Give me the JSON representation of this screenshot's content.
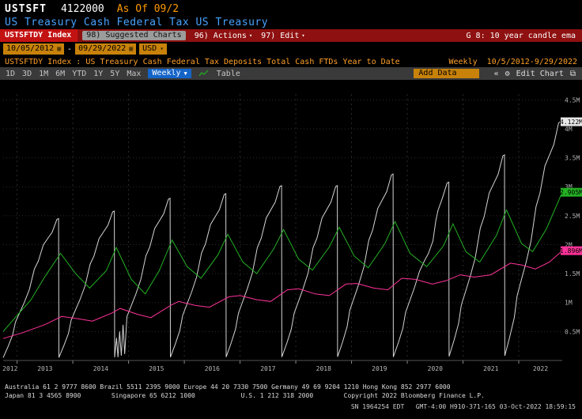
{
  "header": {
    "ticker": "USTSFT",
    "price": "4122000",
    "asof": "As Of 09/2",
    "description": "US Treasury Cash Federal Tax  US Treasury"
  },
  "panel": {
    "security": "USTSFTDY Index",
    "suggested": "98) Suggested Charts",
    "actions": "96) Actions",
    "edit": "97) Edit",
    "title": "G 8: 10 year candle ema"
  },
  "range": {
    "start": "10/05/2012",
    "dash": "-",
    "end": "09/29/2022",
    "currency": "USD"
  },
  "titlebar": {
    "text": "USTSFTDY Index : US Treasury Cash Federal Tax Deposits Total Cash FTDs Year to Date",
    "period": "Weekly",
    "range": "10/5/2012-9/29/2022"
  },
  "toolbar": {
    "periods": [
      "1D",
      "3D",
      "1M",
      "6M",
      "YTD",
      "1Y",
      "5Y",
      "Max"
    ],
    "frequency": "Weekly",
    "table": "Table",
    "add_data": "Add Data",
    "edit_chart": "Edit Chart"
  },
  "icons": {
    "chevron": "▾",
    "chevron_solid": "▼",
    "calendar": "▦",
    "collapse": "«",
    "gear": "⚙",
    "snapshot": "⧉"
  },
  "chart_data": {
    "type": "line",
    "title": "USTSFTDY Index : US Treasury Cash Federal Tax Deposits Total Cash FTDs Year to Date",
    "frequency": "Weekly",
    "xlim": [
      2012.75,
      2022.78
    ],
    "ylim": [
      0,
      4.6
    ],
    "grid": true,
    "legend_position": "none",
    "x_years": [
      2012,
      2013,
      2014,
      2015,
      2016,
      2017,
      2018,
      2019,
      2020,
      2021,
      2022
    ],
    "year_gridlines": [
      2013,
      2014,
      2015,
      2016,
      2017,
      2018,
      2019,
      2020,
      2021,
      2022
    ],
    "yticks": [
      {
        "value": 0.5,
        "label": "0.5M"
      },
      {
        "value": 1,
        "label": "1M"
      },
      {
        "value": 1.5,
        "label": "1.5M"
      },
      {
        "value": 2,
        "label": "2M"
      },
      {
        "value": 2.5,
        "label": "2.5M"
      },
      {
        "value": 3,
        "label": "3M"
      },
      {
        "value": 3.5,
        "label": "3.5M"
      },
      {
        "value": 4,
        "label": "4M"
      },
      {
        "value": 4.5,
        "label": "4.5M"
      }
    ],
    "main_series": {
      "name": "Total Cash FTDs fiscal year to date",
      "color": "#d4d4d4",
      "profile": [
        [
          0,
          0.02
        ],
        [
          0.09,
          0.1
        ],
        [
          0.17,
          0.18
        ],
        [
          0.22,
          0.27
        ],
        [
          0.3,
          0.34
        ],
        [
          0.38,
          0.41
        ],
        [
          0.47,
          0.5
        ],
        [
          0.56,
          0.645
        ],
        [
          0.63,
          0.7
        ],
        [
          0.72,
          0.815
        ],
        [
          0.8,
          0.86
        ],
        [
          0.88,
          0.905
        ],
        [
          0.965,
          0.995
        ],
        [
          0.995,
          1.0
        ]
      ],
      "years": [
        {
          "fy": 2013,
          "peak": 2.45
        },
        {
          "fy": 2014,
          "peak": 2.58
        },
        {
          "fy": 2015,
          "peak": 2.8,
          "profile": [
            [
              0,
              0.02
            ],
            [
              0.035,
              0.14
            ],
            [
              0.06,
              0.02
            ],
            [
              0.09,
              0.18
            ],
            [
              0.12,
              0.03
            ],
            [
              0.15,
              0.22
            ],
            [
              0.18,
              0.04
            ],
            [
              0.22,
              0.27
            ],
            [
              0.3,
              0.34
            ],
            [
              0.38,
              0.41
            ],
            [
              0.47,
              0.5
            ],
            [
              0.56,
              0.645
            ],
            [
              0.63,
              0.7
            ],
            [
              0.72,
              0.815
            ],
            [
              0.8,
              0.86
            ],
            [
              0.88,
              0.905
            ],
            [
              0.965,
              0.995
            ],
            [
              0.995,
              1.0
            ]
          ]
        },
        {
          "fy": 2016,
          "peak": 2.88
        },
        {
          "fy": 2017,
          "peak": 3.02
        },
        {
          "fy": 2018,
          "peak": 3.02
        },
        {
          "fy": 2019,
          "peak": 3.22
        },
        {
          "fy": 2020,
          "peak": 3.08,
          "profile": [
            [
              0,
              0.02
            ],
            [
              0.09,
              0.1
            ],
            [
              0.17,
              0.18
            ],
            [
              0.22,
              0.27
            ],
            [
              0.3,
              0.34
            ],
            [
              0.38,
              0.41
            ],
            [
              0.47,
              0.5
            ],
            [
              0.56,
              0.56
            ],
            [
              0.63,
              0.6
            ],
            [
              0.71,
              0.67
            ],
            [
              0.76,
              0.78
            ],
            [
              0.8,
              0.84
            ],
            [
              0.88,
              0.91
            ],
            [
              0.965,
              0.995
            ],
            [
              0.995,
              1.0
            ]
          ]
        },
        {
          "fy": 2021,
          "peak": 3.55
        },
        {
          "fy": 2022,
          "peak": 4.122
        }
      ],
      "last_value": 4.122,
      "last_label": "4.122M"
    },
    "overlays": [
      {
        "name": "ema-fast",
        "color": "#23b123",
        "last_value": 2.905,
        "last_label": "2.905M",
        "points": [
          [
            2012.75,
            0.5
          ],
          [
            2013.0,
            0.78
          ],
          [
            2013.25,
            1.05
          ],
          [
            2013.5,
            1.45
          ],
          [
            2013.78,
            1.85
          ],
          [
            2014.05,
            1.5
          ],
          [
            2014.3,
            1.25
          ],
          [
            2014.6,
            1.55
          ],
          [
            2014.78,
            1.95
          ],
          [
            2015.05,
            1.4
          ],
          [
            2015.3,
            1.15
          ],
          [
            2015.55,
            1.55
          ],
          [
            2015.78,
            2.08
          ],
          [
            2016.05,
            1.62
          ],
          [
            2016.3,
            1.42
          ],
          [
            2016.6,
            1.82
          ],
          [
            2016.78,
            2.18
          ],
          [
            2017.05,
            1.7
          ],
          [
            2017.3,
            1.5
          ],
          [
            2017.6,
            1.92
          ],
          [
            2017.78,
            2.26
          ],
          [
            2018.05,
            1.75
          ],
          [
            2018.3,
            1.56
          ],
          [
            2018.6,
            1.96
          ],
          [
            2018.78,
            2.3
          ],
          [
            2019.05,
            1.8
          ],
          [
            2019.3,
            1.6
          ],
          [
            2019.6,
            2.02
          ],
          [
            2019.78,
            2.4
          ],
          [
            2020.05,
            1.85
          ],
          [
            2020.35,
            1.62
          ],
          [
            2020.65,
            1.98
          ],
          [
            2020.82,
            2.36
          ],
          [
            2021.05,
            1.88
          ],
          [
            2021.3,
            1.7
          ],
          [
            2021.6,
            2.16
          ],
          [
            2021.78,
            2.6
          ],
          [
            2022.05,
            2.02
          ],
          [
            2022.25,
            1.88
          ],
          [
            2022.5,
            2.28
          ],
          [
            2022.78,
            2.905
          ]
        ]
      },
      {
        "name": "ema-slow",
        "color": "#ff3399",
        "last_value": 1.896,
        "last_label": "1.896M",
        "points": [
          [
            2012.75,
            0.38
          ],
          [
            2013.1,
            0.48
          ],
          [
            2013.5,
            0.62
          ],
          [
            2013.8,
            0.76
          ],
          [
            2014.1,
            0.72
          ],
          [
            2014.35,
            0.68
          ],
          [
            2014.7,
            0.82
          ],
          [
            2014.85,
            0.9
          ],
          [
            2015.15,
            0.8
          ],
          [
            2015.4,
            0.74
          ],
          [
            2015.75,
            0.95
          ],
          [
            2015.9,
            1.02
          ],
          [
            2016.2,
            0.95
          ],
          [
            2016.45,
            0.92
          ],
          [
            2016.8,
            1.1
          ],
          [
            2017.0,
            1.12
          ],
          [
            2017.3,
            1.05
          ],
          [
            2017.55,
            1.02
          ],
          [
            2017.85,
            1.22
          ],
          [
            2018.05,
            1.24
          ],
          [
            2018.35,
            1.15
          ],
          [
            2018.6,
            1.12
          ],
          [
            2018.9,
            1.32
          ],
          [
            2019.1,
            1.33
          ],
          [
            2019.4,
            1.25
          ],
          [
            2019.65,
            1.22
          ],
          [
            2019.9,
            1.42
          ],
          [
            2020.15,
            1.4
          ],
          [
            2020.45,
            1.32
          ],
          [
            2020.7,
            1.38
          ],
          [
            2020.95,
            1.48
          ],
          [
            2021.2,
            1.44
          ],
          [
            2021.5,
            1.48
          ],
          [
            2021.85,
            1.68
          ],
          [
            2022.05,
            1.65
          ],
          [
            2022.3,
            1.58
          ],
          [
            2022.55,
            1.7
          ],
          [
            2022.78,
            1.896
          ]
        ]
      }
    ]
  },
  "footer": {
    "line1": "Australia 61 2 9777 8600 Brazil 5511 2395 9000 Europe 44 20 7330 7500 Germany 49 69 9204 1210 Hong Kong 852 2977 6000",
    "line2": "Japan 81 3 4565 8900        Singapore 65 6212 1000            U.S. 1 212 318 2000        Copyright 2022 Bloomberg Finance L.P.",
    "line3": "SN 1964254 EDT   GMT-4:00 H910-371-165 03-Oct-2022 18:59:15"
  }
}
